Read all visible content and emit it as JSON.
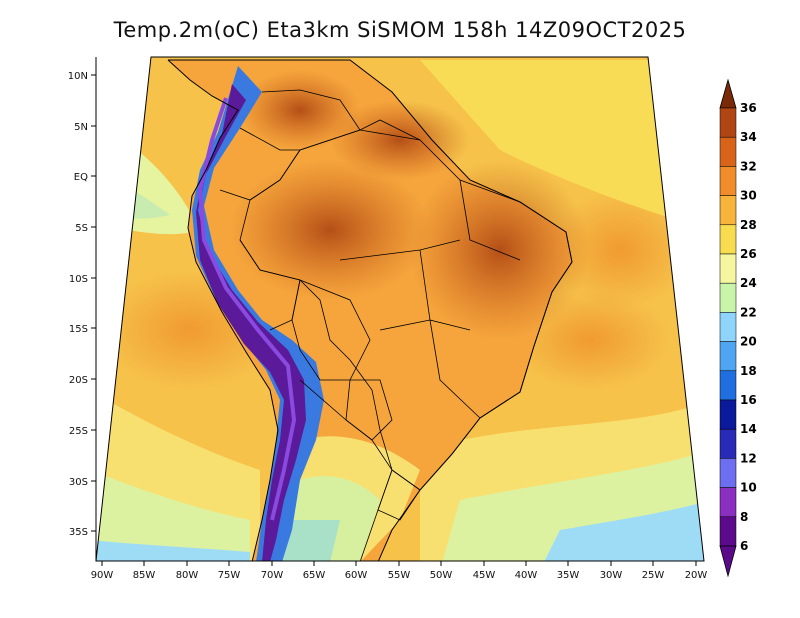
{
  "title": "Temp.2m(oC) Eta3km SiSMOM 158h 14Z09OCT2025",
  "lat_axis": {
    "labels": [
      "10N",
      "5N",
      "EQ",
      "5S",
      "10S",
      "15S",
      "20S",
      "25S",
      "30S",
      "35S"
    ],
    "values": [
      10,
      5,
      0,
      -5,
      -10,
      -15,
      -20,
      -25,
      -30,
      -35
    ]
  },
  "lon_axis": {
    "labels": [
      "90W",
      "85W",
      "80W",
      "75W",
      "70W",
      "65W",
      "60W",
      "55W",
      "50W",
      "45W",
      "40W",
      "35W",
      "30W",
      "25W",
      "20W"
    ],
    "values": [
      -90,
      -85,
      -80,
      -75,
      -70,
      -65,
      -60,
      -55,
      -50,
      -45,
      -40,
      -35,
      -30,
      -25,
      -20
    ]
  },
  "colorbar": {
    "unit": "oC",
    "levels": [
      "6",
      "8",
      "10",
      "12",
      "14",
      "16",
      "18",
      "20",
      "22",
      "24",
      "26",
      "28",
      "30",
      "32",
      "34",
      "36"
    ],
    "colors": [
      "#5a0a8a",
      "#8a2fc0",
      "#6e6ef0",
      "#2a2ab8",
      "#0a1a9a",
      "#1f6fe0",
      "#4ea6f2",
      "#8fd4fa",
      "#c8f5a8",
      "#f6f6a0",
      "#f8dc50",
      "#f6b43a",
      "#f08c2a",
      "#d8641a",
      "#b04612",
      "#7a2a08"
    ]
  },
  "colors": {
    "ocean_warm": "#f4b848",
    "ocean_mid": "#f8dc60",
    "ocean_cool": "#d8f0a0",
    "coast": "#000000"
  }
}
